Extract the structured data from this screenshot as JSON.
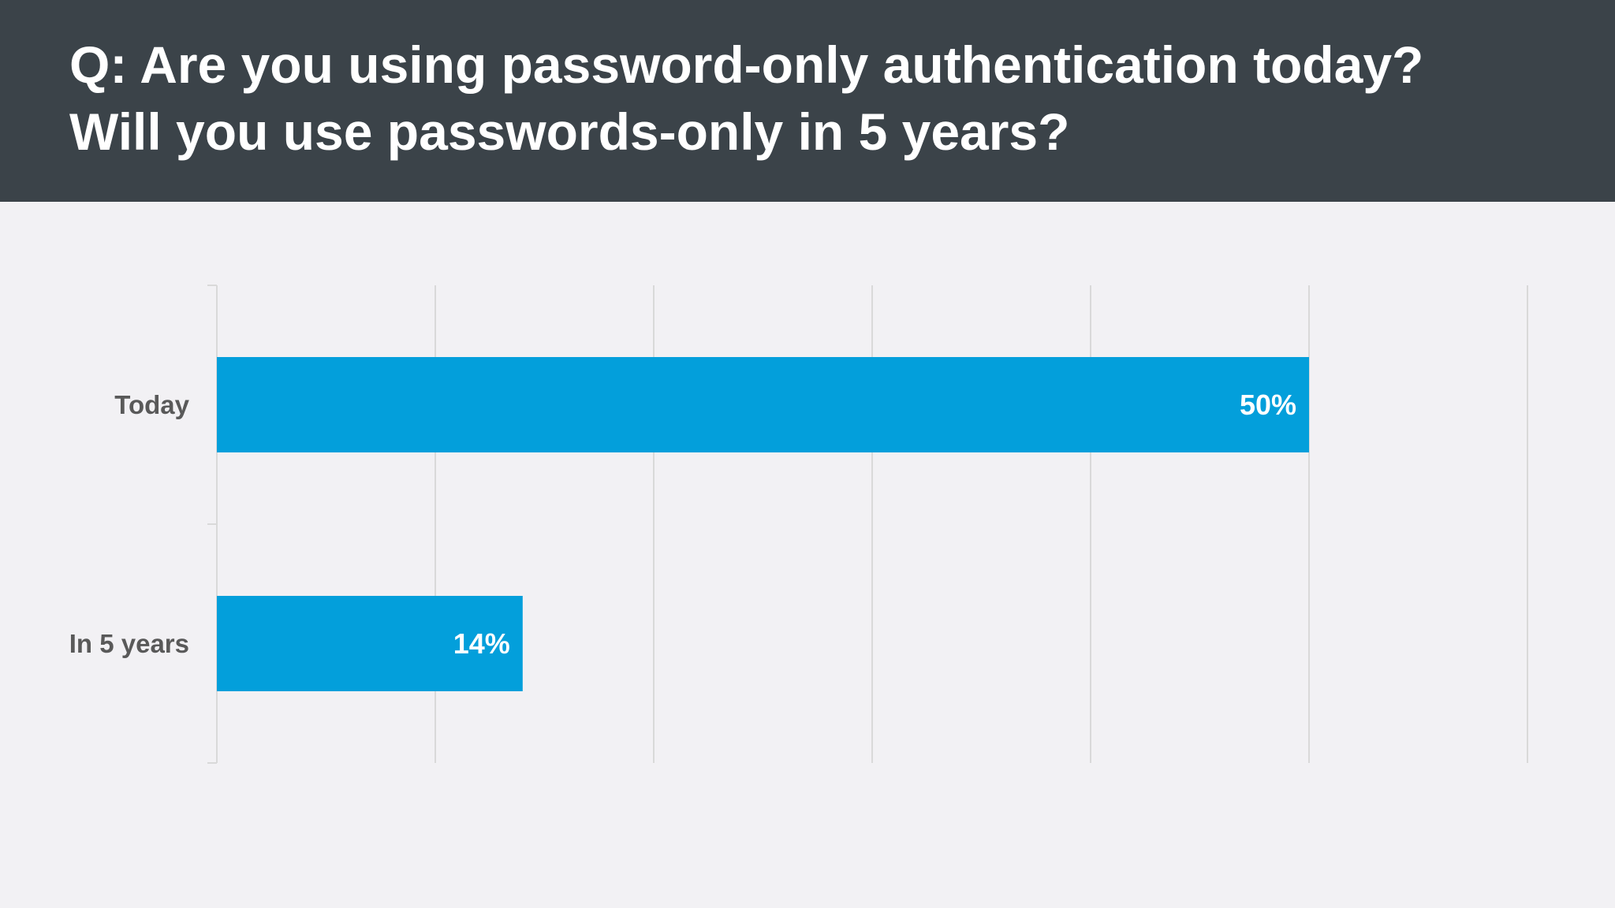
{
  "header": {
    "title_line1": "Q: Are you using password-only authentication today?",
    "title_line2": "Will you use passwords-only in 5 years?"
  },
  "chart_data": {
    "type": "bar",
    "orientation": "horizontal",
    "categories": [
      "Today",
      "In 5 years"
    ],
    "values": [
      50,
      14
    ],
    "data_labels": [
      "50%",
      "14%"
    ],
    "xlim": [
      0,
      60
    ],
    "grid": true,
    "bar_color": "#039fdb"
  }
}
